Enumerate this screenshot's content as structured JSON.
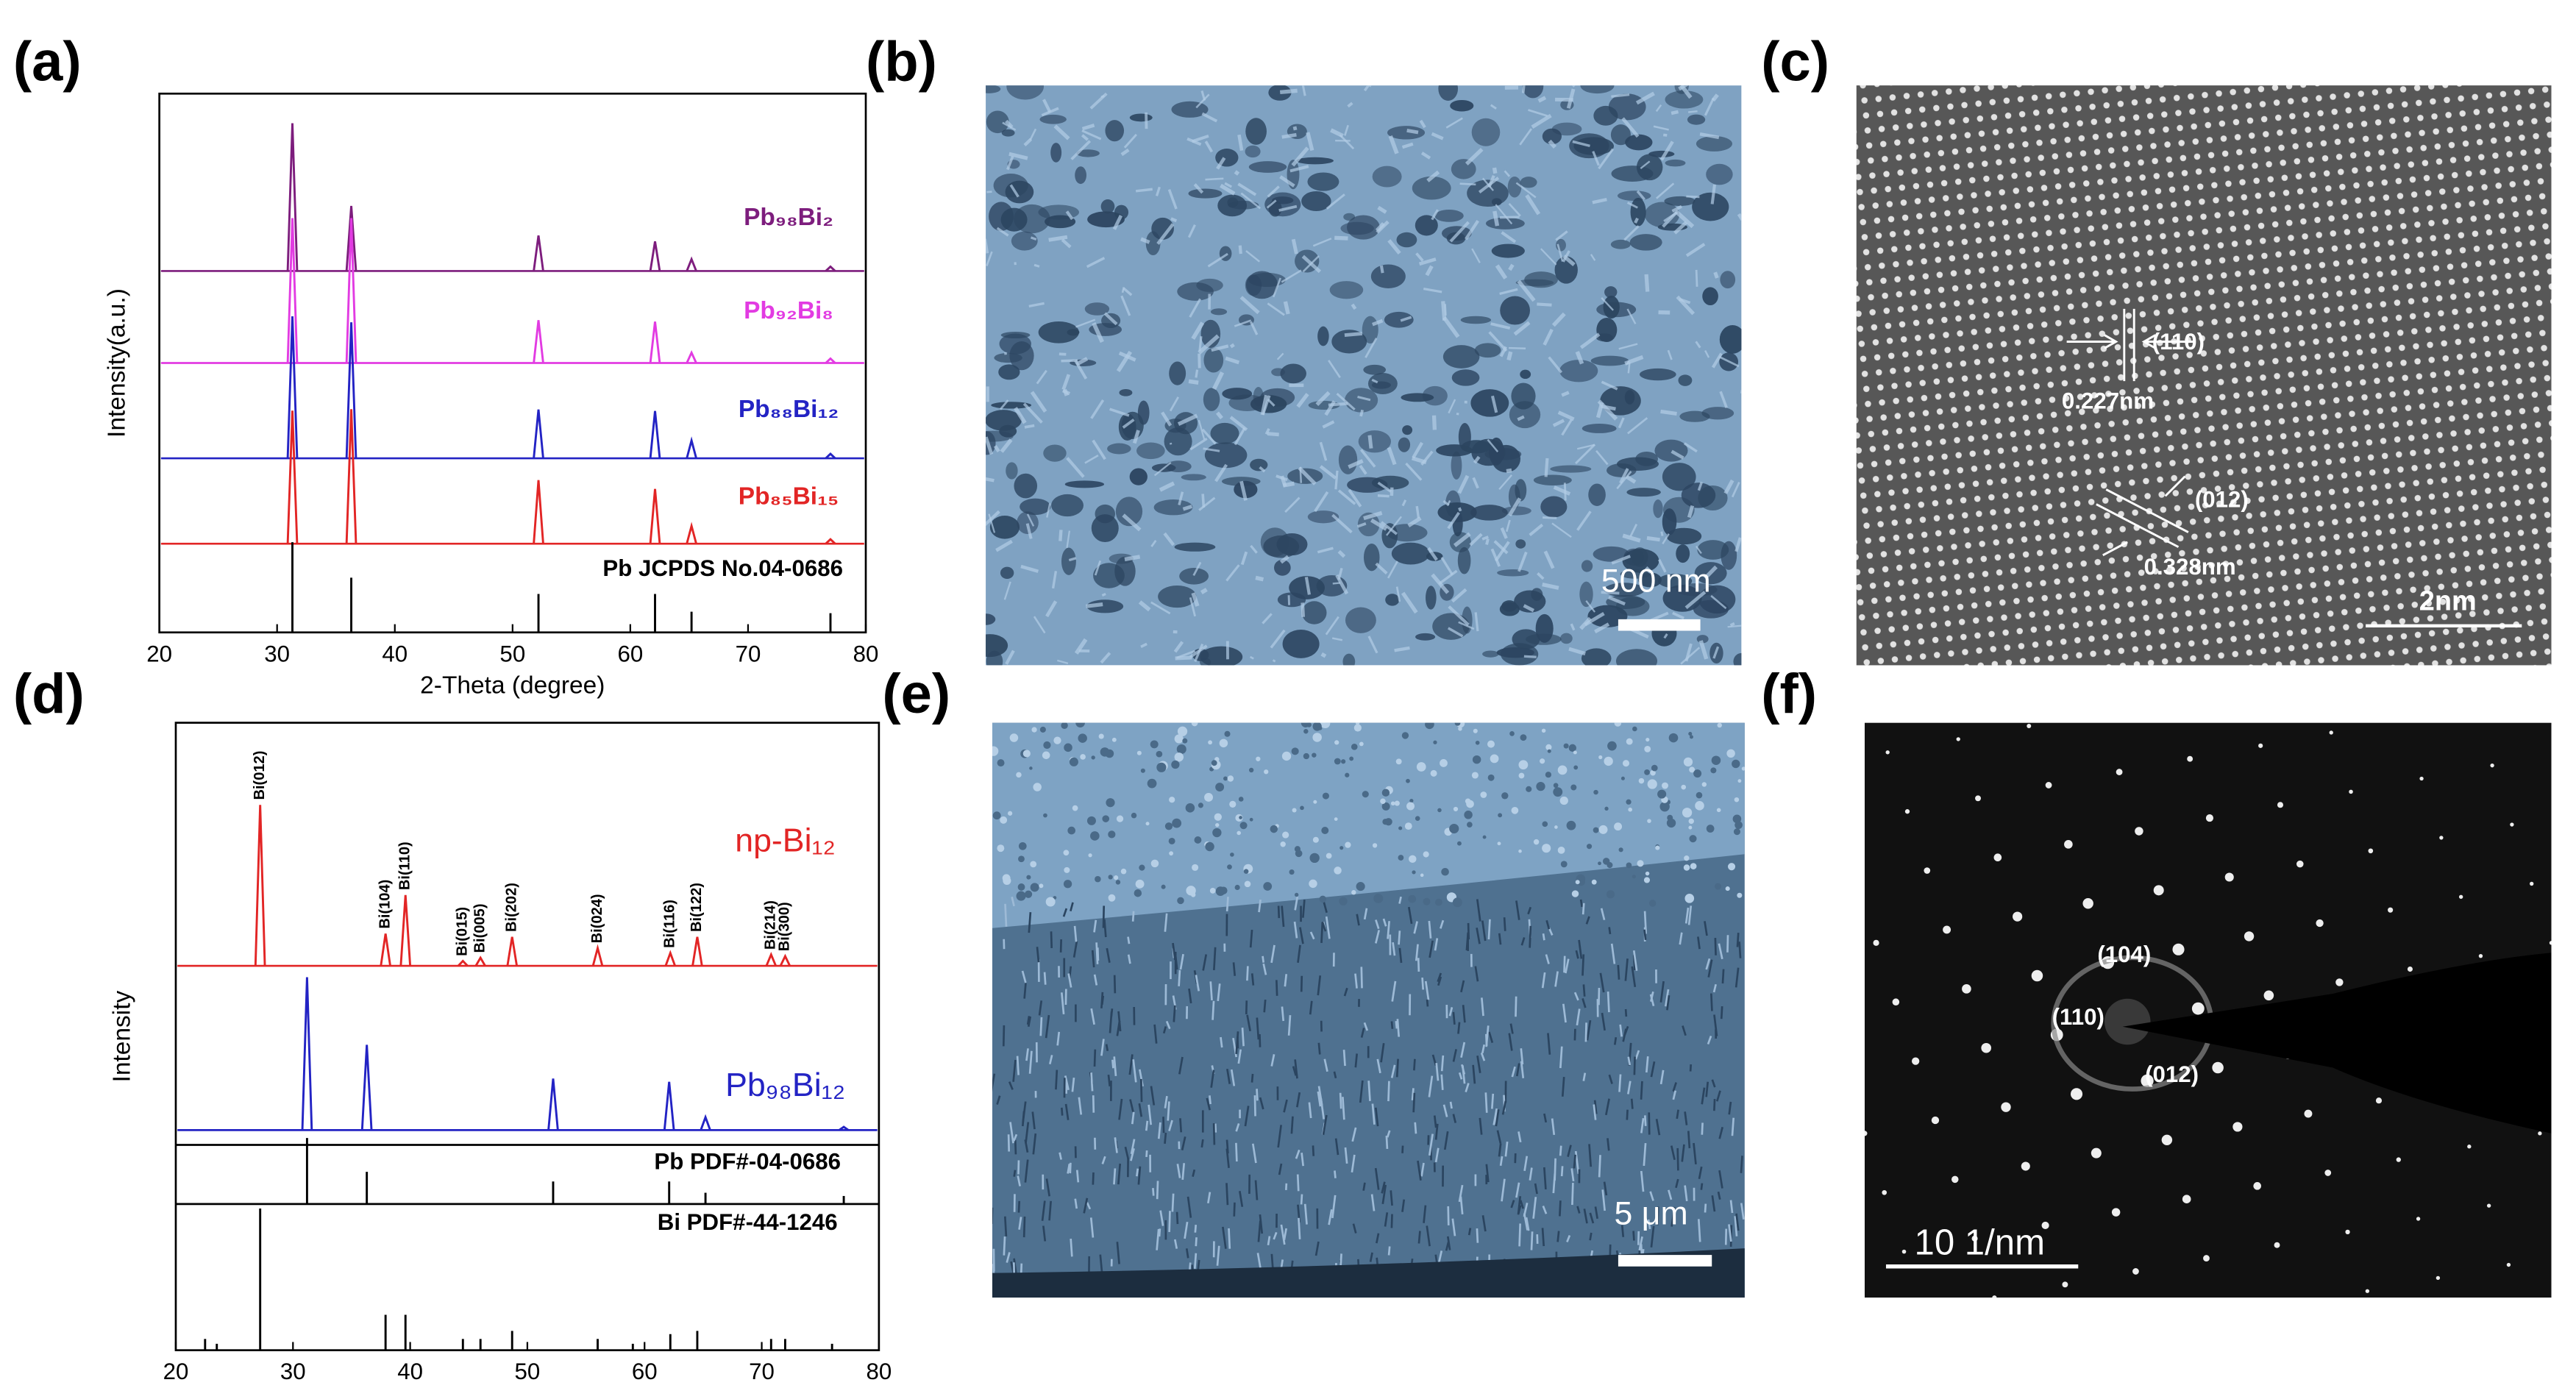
{
  "chart_data": [
    {
      "type": "xrd",
      "panel_label": "(a)",
      "xlabel": "2-Theta (degree)",
      "ylabel": "Intensity(a.u.)",
      "xlim": [
        20,
        80
      ],
      "xticks": [
        20,
        30,
        40,
        50,
        60,
        70,
        80
      ],
      "series": [
        {
          "name": "Pb₉₈Bi₂",
          "color": "#7d1d7d",
          "x": [
            31.3,
            36.3,
            52.2,
            62.1,
            65.2,
            77.0
          ],
          "values": [
            100,
            44,
            24,
            20,
            8,
            3
          ]
        },
        {
          "name": "Pb₉₂Bi₈",
          "color": "#e23be2",
          "x": [
            31.3,
            36.3,
            52.2,
            62.1,
            65.2,
            77.0
          ],
          "values": [
            98,
            98,
            29,
            28,
            7,
            3
          ]
        },
        {
          "name": "Pb₈₈Bi₁₂",
          "color": "#2323c4",
          "x": [
            31.3,
            36.3,
            52.2,
            62.1,
            65.2,
            77.0
          ],
          "values": [
            96,
            92,
            33,
            32,
            12,
            3
          ]
        },
        {
          "name": "Pb₈₅Bi₁₅",
          "color": "#e22525",
          "x": [
            31.3,
            36.3,
            52.2,
            62.1,
            65.2,
            77.0
          ],
          "values": [
            90,
            91,
            43,
            37,
            12,
            3
          ]
        }
      ],
      "references": [
        {
          "name": "Pb JCPDS No.04-0686",
          "color": "#000000",
          "x": [
            31.3,
            36.3,
            52.2,
            62.1,
            65.2,
            77.0
          ],
          "values": [
            61,
            37,
            26,
            26,
            14,
            13
          ]
        }
      ]
    },
    {
      "type": "xrd",
      "panel_label": "(d)",
      "xlabel": "2-Theta(degree)",
      "ylabel": "Intensity",
      "xlim": [
        20,
        80
      ],
      "xticks": [
        20,
        30,
        40,
        50,
        60,
        70,
        80
      ],
      "series": [
        {
          "name": "np-Bi₁₂",
          "color": "#e22525",
          "x": [
            27.2,
            37.9,
            39.6,
            44.5,
            46.0,
            48.7,
            56.0,
            62.2,
            64.5,
            70.8,
            72.0
          ],
          "values": [
            100,
            20,
            44,
            3,
            5,
            18,
            11,
            8,
            18,
            7,
            6
          ],
          "peak_labels": [
            "Bi(012)",
            "Bi(104)",
            "Bi(110)",
            "Bi(015)",
            "Bi(005)",
            "Bi(202)",
            "Bi(024)",
            "Bi(116)",
            "Bi(122)",
            "Bi(214)",
            "Bi(300)"
          ]
        },
        {
          "name": "Pb₉₈Bi₁₂",
          "color": "#2323c4",
          "x": [
            31.2,
            36.3,
            52.2,
            62.1,
            65.2,
            77.0
          ],
          "values": [
            95,
            53,
            32,
            30,
            8,
            2
          ]
        }
      ],
      "references": [
        {
          "name": "Pb PDF#-04-0686",
          "color": "#000000",
          "x": [
            31.2,
            36.3,
            52.2,
            62.1,
            65.2,
            77.0
          ],
          "values": [
            41,
            20,
            14,
            14,
            7,
            5
          ]
        },
        {
          "name": "Bi PDF#-44-1246",
          "color": "#000000",
          "x": [
            22.5,
            23.5,
            27.2,
            37.9,
            39.6,
            44.5,
            46.0,
            48.7,
            56.0,
            59.0,
            62.2,
            64.5,
            70.8,
            72.0,
            76.0
          ],
          "values": [
            7,
            4,
            88,
            22,
            22,
            7,
            7,
            12,
            7,
            4,
            10,
            12,
            7,
            7,
            4
          ]
        }
      ]
    }
  ],
  "images": [
    {
      "panel_label": "(b)",
      "scale_bar": "500 nm"
    },
    {
      "panel_label": "(c)",
      "annotations": [
        "(110)",
        "0.227nm",
        "(012)",
        "0.328nm"
      ],
      "scale_bar": "2nm"
    },
    {
      "panel_label": "(e)",
      "scale_bar": "5 μm"
    },
    {
      "panel_label": "(f)",
      "annotations": [
        "(104)",
        "(110)",
        "(012)"
      ],
      "scale_bar": "10 1/nm"
    }
  ]
}
